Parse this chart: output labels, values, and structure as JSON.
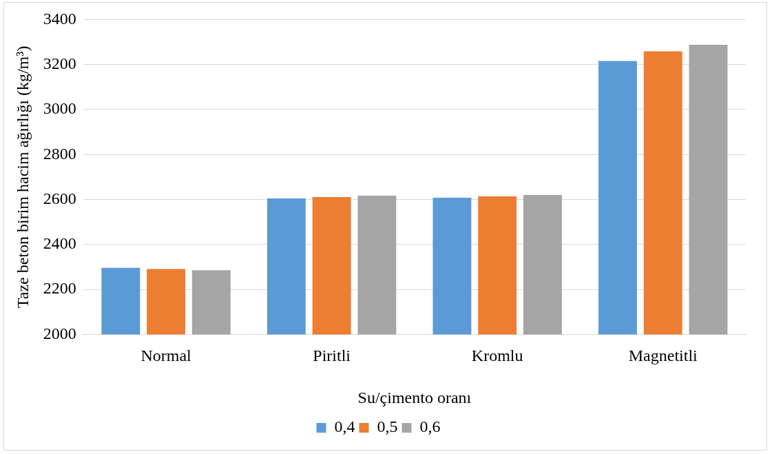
{
  "chart_data": {
    "type": "bar",
    "xlabel": "Su/çimento oranı",
    "ylabel": "Taze beton birim hacim ağırlığı (kg/m³)",
    "categories": [
      "Normal",
      "Piritli",
      "Kromlu",
      "Magnetitli"
    ],
    "series": [
      {
        "name": "0,4",
        "color": "#5b9bd5",
        "values": [
          2296,
          2605,
          2608,
          3216
        ]
      },
      {
        "name": "0,5",
        "color": "#ed7d31",
        "values": [
          2291,
          2611,
          2614,
          3259
        ]
      },
      {
        "name": "0,6",
        "color": "#a5a5a5",
        "values": [
          2285,
          2617,
          2620,
          3288
        ]
      }
    ],
    "ylim": [
      2000,
      3400
    ],
    "yticks": [
      2000,
      2200,
      2400,
      2600,
      2800,
      3000,
      3200,
      3400
    ],
    "grid": "y",
    "legend": "bottom"
  }
}
